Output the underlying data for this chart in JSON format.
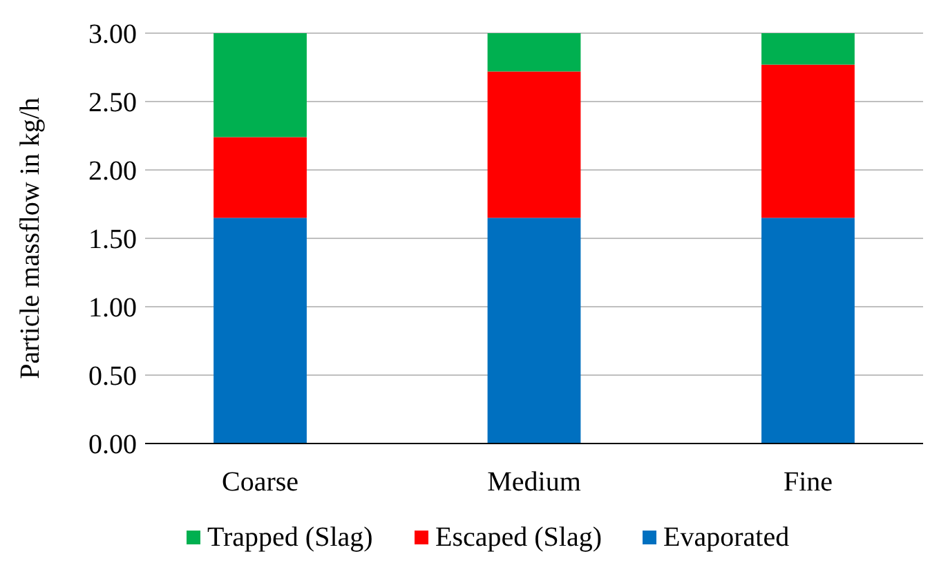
{
  "chart_data": {
    "type": "bar",
    "stacked": true,
    "ylabel": "Particle massflow in kg/h",
    "categories": [
      "Coarse",
      "Medium",
      "Fine"
    ],
    "series": [
      {
        "name": "Evaporated",
        "color": "#0070c0",
        "values": [
          1.65,
          1.65,
          1.65
        ]
      },
      {
        "name": "Escaped (Slag)",
        "color": "#ff0000",
        "values": [
          0.59,
          1.07,
          1.12
        ]
      },
      {
        "name": "Trapped (Slag)",
        "color": "#00b050",
        "values": [
          0.76,
          0.28,
          0.23
        ]
      }
    ],
    "ylim": [
      0,
      3
    ],
    "yticks": [
      {
        "value": 0,
        "label": "0.00"
      },
      {
        "value": 0.5,
        "label": "0.50"
      },
      {
        "value": 1,
        "label": "1.00"
      },
      {
        "value": 1.5,
        "label": "1.50"
      },
      {
        "value": 2,
        "label": "2.00"
      },
      {
        "value": 2.5,
        "label": "2.50"
      },
      {
        "value": 3,
        "label": "3.00"
      }
    ],
    "grid": "y",
    "legend": "bottom"
  }
}
